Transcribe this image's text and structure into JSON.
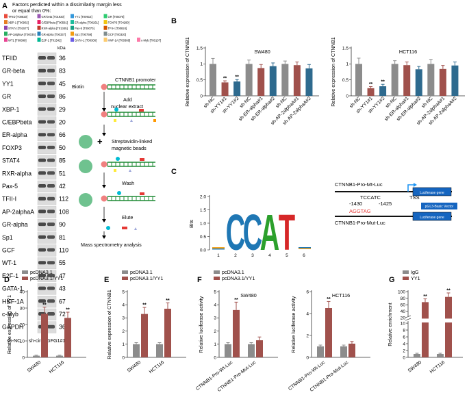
{
  "colors": {
    "gray": "#8c8c8c",
    "red": "#a0514c",
    "blue": "#2e6a8e",
    "green": "#1e8a34",
    "logoC": "#1f77b4",
    "logoA": "#2ca02c",
    "logoT": "#d62728"
  },
  "panelA": {
    "letter": "A",
    "legend_title_line1": "Factors perdicted within a dissimilarity margin less",
    "legend_title_line2": "or equal than 0%:",
    "legend_rows": [
      [
        "TFIID [T00820]",
        "GR-beta [T01920]",
        "YY1 [T00915]",
        "GR [T05076]"
      ],
      [
        "XBP-1 [T00902]",
        "C/EBPbeta [T00581]",
        "ER-alpha [T00261]",
        "FOXP3 [T04280]"
      ],
      [
        "STAT4 [T01577]",
        "RXR-alpha [T01345]",
        "Pax-5 [T00070]",
        "TFII-I [T00824]"
      ],
      [
        "AP-2alphaA [T00035]",
        "GR-alpha [T00337]",
        "Sp1 [T00759]",
        "GCF [T00320]"
      ],
      [
        "WT1 [T00899]",
        "E2F-1 [T01542]",
        "GATA-1 [T00306]",
        "HNF-1A [T00368]",
        "c-Myb [T00137]"
      ]
    ],
    "kda_header": "kDa",
    "blot_rows": [
      {
        "name": "TFIID",
        "kda": "36"
      },
      {
        "name": "GR-beta",
        "kda": "83"
      },
      {
        "name": "YY1",
        "kda": "45"
      },
      {
        "name": "GR",
        "kda": "86"
      },
      {
        "name": "XBP-1",
        "kda": "29"
      },
      {
        "name": "C/EBPbeta",
        "kda": "20"
      },
      {
        "name": "ER-alpha",
        "kda": "66"
      },
      {
        "name": "FOXP3",
        "kda": "50"
      },
      {
        "name": "STAT4",
        "kda": "85"
      },
      {
        "name": "RXR-alpha",
        "kda": "51"
      },
      {
        "name": "Pax-5",
        "kda": "42"
      },
      {
        "name": "TFII-I",
        "kda": "112"
      },
      {
        "name": "AP-2alphaA",
        "kda": "108"
      },
      {
        "name": "GR-alpha",
        "kda": "90"
      },
      {
        "name": "Sp1",
        "kda": "81"
      },
      {
        "name": "GCF",
        "kda": "110"
      },
      {
        "name": "WT-1",
        "kda": "55"
      },
      {
        "name": "E2F-1",
        "kda": "47"
      },
      {
        "name": "GATA-1",
        "kda": "43"
      },
      {
        "name": "HNF-1A",
        "kda": "67"
      },
      {
        "name": "c-Myb",
        "kda": "72"
      },
      {
        "name": "GAPDH",
        "kda": "36"
      }
    ],
    "lane1": "sh-NC",
    "lane2": "sh-circAGFG1#1",
    "workflow": {
      "biotin": "Biotin",
      "promoter": "CTNNB1 promoter",
      "step1_l1": "Add",
      "step1_l2": "nuclear extract",
      "step2_l1": "Streptavidin-linked",
      "step2_l2": "magnetic beads",
      "plus": "+",
      "step3": "Wash",
      "step4": "Elute",
      "step5": "Mass spectrometry analysis"
    }
  },
  "panelC": {
    "letter": "C",
    "logo_ylabel": "Bits",
    "logo_yticks": [
      "0.0",
      "0.5",
      "1.0",
      "1.5",
      "2.0"
    ],
    "logo_positions": [
      "1",
      "2",
      "3",
      "4",
      "5",
      "6"
    ],
    "logo_letters": [
      "C",
      "C",
      "A",
      "T"
    ],
    "wt_label": "CTNNB1-Pro-Mt-Luc",
    "wt_seq": "TCCATC",
    "tss": "TSS",
    "luc": "Luciferase gene",
    "vector": "pGL3-Basic Vector",
    "pos1": "-1430",
    "pos2": "-1425",
    "mut_seq": "AGGTAG",
    "mut_label": "CTNNB1-Pro-Mut-Luc"
  },
  "chart_data": [
    {
      "id": "B1",
      "panel": "B",
      "type": "bar",
      "title": "SW480",
      "ylabel": "Relative expression of CTNNB1",
      "ylim": [
        0,
        1.5
      ],
      "yticks": [
        0,
        0.5,
        1.0,
        1.5
      ],
      "categories": [
        "sh-NC",
        "sh-YY1#1",
        "sh-YY1#2",
        "sh-NC",
        "sh-ER-alpha#1",
        "sh-ER-alpha#2",
        "sh-NC",
        "sh-AP-2alphaA#1",
        "sh-AP-2alphaA#2"
      ],
      "values": [
        1.0,
        0.42,
        0.45,
        1.0,
        0.87,
        0.93,
        1.0,
        0.96,
        0.86
      ],
      "errors": [
        0.17,
        0.05,
        0.06,
        0.12,
        0.11,
        0.1,
        0.09,
        0.1,
        0.12
      ],
      "colors": [
        "gray",
        "red",
        "blue",
        "gray",
        "red",
        "blue",
        "gray",
        "red",
        "blue"
      ],
      "annotations": [
        "",
        "**",
        "**",
        "",
        "",
        "",
        "",
        "",
        ""
      ]
    },
    {
      "id": "B2",
      "panel": "B",
      "type": "bar",
      "title": "HCT116",
      "ylabel": "Relative expression of CTNNB1",
      "ylim": [
        0,
        1.5
      ],
      "yticks": [
        0,
        0.5,
        1.0,
        1.5
      ],
      "categories": [
        "sh-NC",
        "sh-YY1#1",
        "sh-YY1#2",
        "sh-NC",
        "sh-ER-alpha#1",
        "sh-ER-alpha#2",
        "sh-NC",
        "sh-AP-2alphaA#1",
        "sh-AP-2alphaA#2"
      ],
      "values": [
        1.0,
        0.24,
        0.3,
        1.0,
        0.96,
        0.83,
        1.0,
        0.84,
        0.95
      ],
      "errors": [
        0.18,
        0.05,
        0.06,
        0.1,
        0.1,
        0.09,
        0.14,
        0.11,
        0.11
      ],
      "colors": [
        "gray",
        "red",
        "blue",
        "gray",
        "red",
        "blue",
        "gray",
        "red",
        "blue"
      ],
      "annotations": [
        "",
        "**",
        "**",
        "",
        "",
        "",
        "",
        "",
        ""
      ]
    },
    {
      "id": "D",
      "panel": "D",
      "type": "bar",
      "title": "",
      "ylabel": "Relative expression of YY1",
      "ylim": [
        0,
        40
      ],
      "yticks": [
        0,
        10,
        20,
        30,
        40
      ],
      "legend": [
        "pcDNA3.1",
        "pcDNA3.1/YY1"
      ],
      "categories": [
        "SW480",
        "HCT116"
      ],
      "series": [
        {
          "name": "pcDNA3.1",
          "values": [
            1.0,
            1.0
          ],
          "errors": [
            0.3,
            0.3
          ],
          "color": "gray"
        },
        {
          "name": "pcDNA3.1/YY1",
          "values": [
            26.5,
            24.0
          ],
          "errors": [
            4.0,
            3.5
          ],
          "color": "red"
        }
      ],
      "annotations": [
        "**",
        "**"
      ]
    },
    {
      "id": "E",
      "panel": "E",
      "type": "bar",
      "title": "",
      "ylabel": "Relative expression of CTNNB1",
      "ylim": [
        0,
        5
      ],
      "yticks": [
        0,
        1,
        2,
        3,
        4,
        5
      ],
      "legend": [
        "pcDNA3.1",
        "pcDNA3.1/YY1"
      ],
      "categories": [
        "SW480",
        "HCT116"
      ],
      "series": [
        {
          "name": "pcDNA3.1",
          "values": [
            1.0,
            1.0
          ],
          "errors": [
            0.12,
            0.12
          ],
          "color": "gray"
        },
        {
          "name": "pcDNA3.1/YY1",
          "values": [
            3.3,
            3.7
          ],
          "errors": [
            0.5,
            0.45
          ],
          "color": "red"
        }
      ],
      "annotations": [
        "**",
        "**"
      ]
    },
    {
      "id": "F1",
      "panel": "F",
      "type": "bar",
      "title": "SW480",
      "ylabel": "Relative luciferase activity",
      "ylim": [
        0,
        5
      ],
      "yticks": [
        0,
        1,
        2,
        3,
        4,
        5
      ],
      "legend": [
        "pcDNA3.1",
        "pcDNA3.1/YY1"
      ],
      "categories": [
        "CTNNB1-Pro-Wt-Luc",
        "CTNNB1-Pro-Mut-Luc"
      ],
      "series": [
        {
          "name": "pcDNA3.1",
          "values": [
            1.0,
            1.0
          ],
          "errors": [
            0.12,
            0.12
          ],
          "color": "gray"
        },
        {
          "name": "pcDNA3.1/YY1",
          "values": [
            3.6,
            1.3
          ],
          "errors": [
            0.6,
            0.25
          ],
          "color": "red"
        }
      ],
      "annotations": [
        "**",
        ""
      ]
    },
    {
      "id": "F2",
      "panel": "F",
      "type": "bar",
      "title": "HCT116",
      "ylabel": "Relative luciferase activity",
      "ylim": [
        0,
        6
      ],
      "yticks": [
        0,
        2,
        4,
        6
      ],
      "categories": [
        "CTNNB1-Pro-Wt-Luc",
        "CTNNB1-Pro-Mut-Luc"
      ],
      "series": [
        {
          "name": "pcDNA3.1",
          "values": [
            1.0,
            1.0
          ],
          "errors": [
            0.12,
            0.12
          ],
          "color": "gray"
        },
        {
          "name": "pcDNA3.1/YY1",
          "values": [
            4.5,
            1.25
          ],
          "errors": [
            0.6,
            0.2
          ],
          "color": "red"
        }
      ],
      "annotations": [
        "**",
        ""
      ]
    },
    {
      "id": "G",
      "panel": "G",
      "type": "bar",
      "title": "",
      "ylabel": "Relative enrichment",
      "ylim": [
        0,
        100
      ],
      "yticks": [
        0,
        2,
        4,
        6,
        8,
        10,
        20,
        40,
        60,
        80,
        100
      ],
      "axis_break": [
        10,
        20
      ],
      "legend": [
        "IgG",
        "YY1"
      ],
      "categories": [
        "SW480",
        "HCT116"
      ],
      "series": [
        {
          "name": "IgG",
          "values": [
            1.0,
            1.0
          ],
          "errors": [
            0.2,
            0.2
          ],
          "color": "gray"
        },
        {
          "name": "YY1",
          "values": [
            68,
            84
          ],
          "errors": [
            10,
            12
          ],
          "color": "red"
        }
      ],
      "annotations": [
        "**",
        "**"
      ]
    }
  ]
}
